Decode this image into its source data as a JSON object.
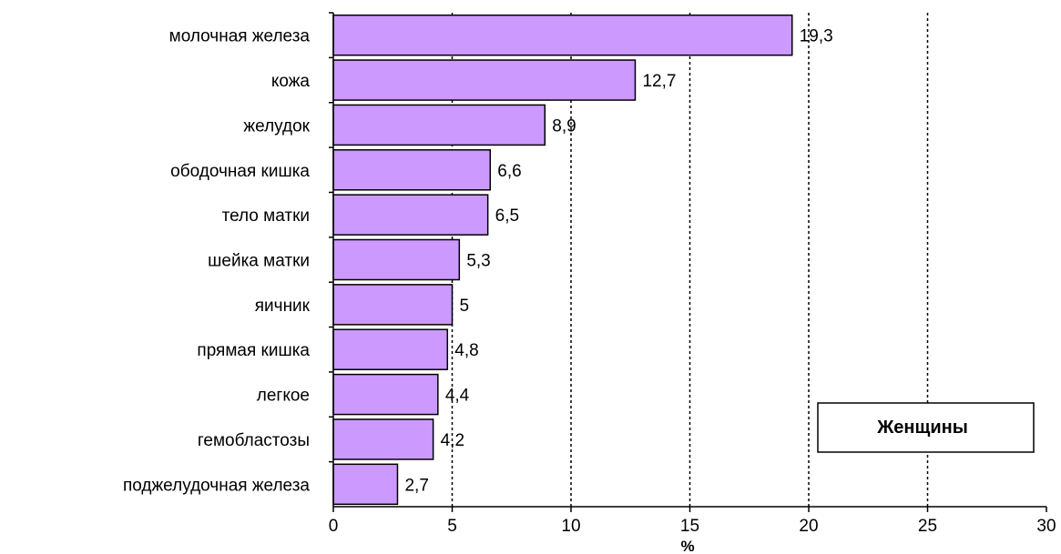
{
  "chart_data": {
    "type": "bar",
    "orientation": "horizontal",
    "categories": [
      "молочная железа",
      "кожа",
      "желудок",
      "ободочная кишка",
      "тело матки",
      "шейка матки",
      "яичник",
      "прямая кишка",
      "легкое",
      "гемобластозы",
      "поджелудочная железа"
    ],
    "values": [
      19.3,
      12.7,
      8.9,
      6.6,
      6.5,
      5.3,
      5,
      4.8,
      4.4,
      4.2,
      2.7
    ],
    "value_labels": [
      "19,3",
      "12,7",
      "8,9",
      "6,6",
      "6,5",
      "5,3",
      "5",
      "4,8",
      "4,4",
      "4,2",
      "2,7"
    ],
    "xlim": [
      0,
      30
    ],
    "xticks": [
      0,
      5,
      10,
      15,
      20,
      25,
      30
    ],
    "xlabel": "%",
    "grid": "vertical dashed lines",
    "legend": {
      "text": "Женщины",
      "placement": "bottom-right"
    },
    "colors": {
      "bar_fill": "#cc99ff",
      "bar_stroke": "#000000",
      "grid": "#000000"
    }
  }
}
